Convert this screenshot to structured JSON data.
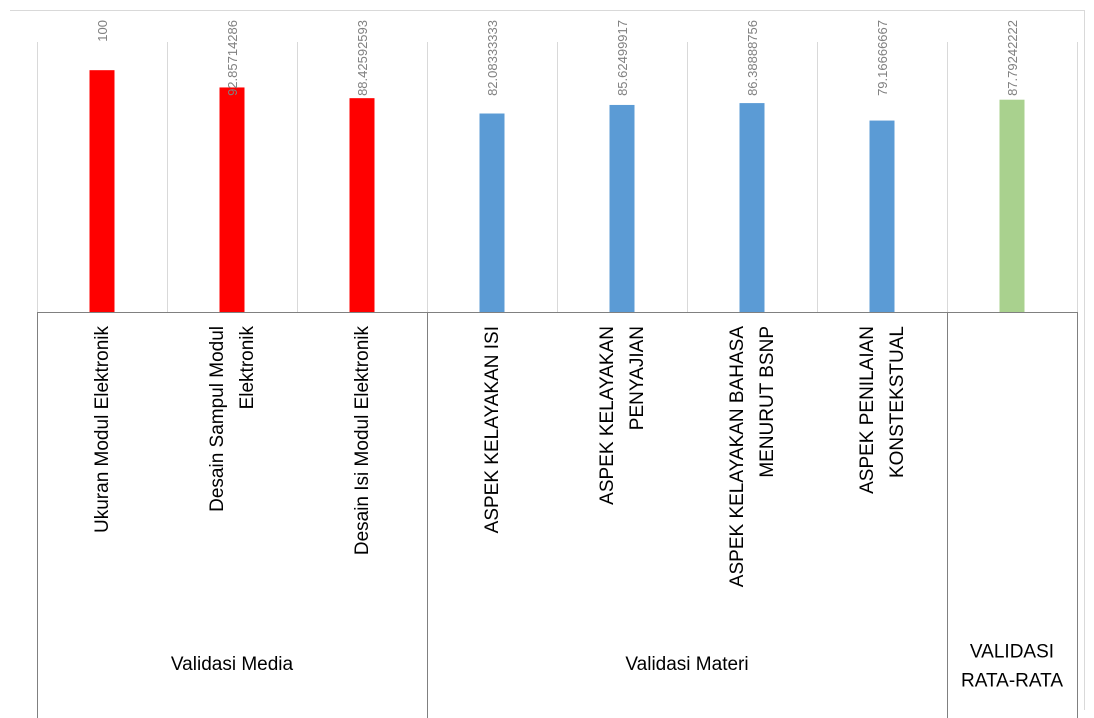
{
  "chart_data": {
    "type": "bar",
    "title": "",
    "xlabel": "",
    "ylabel": "",
    "ylim": [
      0,
      110
    ],
    "grid": "vertical",
    "legend": "none",
    "categories": [
      "Ukuran Modul Elektronik",
      "Desain Sampul Modul Elektronik",
      "Desain Isi Modul Elektronik",
      "ASPEK KELAYAKAN ISI",
      "ASPEK KELAYAKAN PENYAJIAN",
      "ASPEK KELAYAKAN BAHASA MENURUT BSNP",
      "ASPEK PENILAIAN KONSTEKSTUAL",
      ""
    ],
    "category_lines": [
      [
        "Ukuran Modul Elektronik"
      ],
      [
        "Desain Sampul Modul",
        "Elektronik"
      ],
      [
        "Desain Isi Modul Elektronik"
      ],
      [
        "ASPEK KELAYAKAN ISI"
      ],
      [
        "ASPEK KELAYAKAN",
        "PENYAJIAN"
      ],
      [
        "ASPEK KELAYAKAN BAHASA",
        "MENURUT BSNP"
      ],
      [
        "ASPEK PENILAIAN",
        "KONSTEKSTUAL"
      ],
      []
    ],
    "values": [
      100,
      92.85714286,
      88.42592593,
      82.08333333,
      85.62499917,
      86.38888756,
      79.16666667,
      87.79242222
    ],
    "value_labels": [
      "100",
      "92.85714286",
      "88.42592593",
      "82.08333333",
      "85.62499917",
      "86.38888756",
      "79.16666667",
      "87.79242222"
    ],
    "colors": [
      "#ff0000",
      "#ff0000",
      "#ff0000",
      "#5b9bd5",
      "#5b9bd5",
      "#5b9bd5",
      "#5b9bd5",
      "#a9d18e"
    ],
    "groups": [
      {
        "label": [
          "Validasi Media"
        ],
        "start": 0,
        "end": 2
      },
      {
        "label": [
          "Validasi Materi"
        ],
        "start": 3,
        "end": 6
      },
      {
        "label": [
          "VALIDASI",
          "RATA-RATA"
        ],
        "start": 7,
        "end": 7
      }
    ]
  }
}
